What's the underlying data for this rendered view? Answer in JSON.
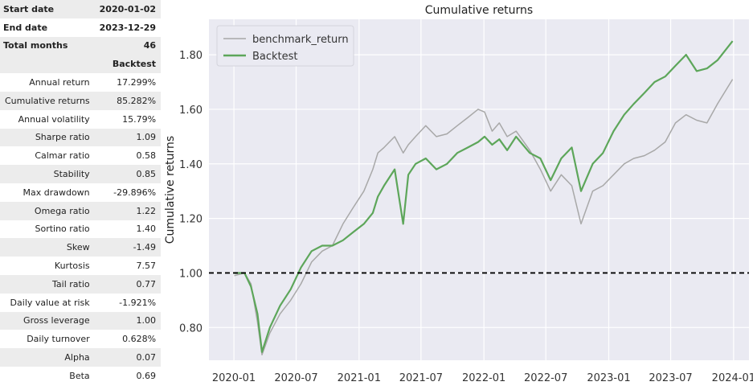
{
  "summary": [
    {
      "label": "Start date",
      "value": "2020-01-02"
    },
    {
      "label": "End date",
      "value": "2023-12-29"
    },
    {
      "label": "Total months",
      "value": "46"
    }
  ],
  "column_header": "Backtest",
  "metrics": [
    {
      "label": "Annual return",
      "value": "17.299%"
    },
    {
      "label": "Cumulative returns",
      "value": "85.282%"
    },
    {
      "label": "Annual volatility",
      "value": "15.79%"
    },
    {
      "label": "Sharpe ratio",
      "value": "1.09"
    },
    {
      "label": "Calmar ratio",
      "value": "0.58"
    },
    {
      "label": "Stability",
      "value": "0.85"
    },
    {
      "label": "Max drawdown",
      "value": "-29.896%"
    },
    {
      "label": "Omega ratio",
      "value": "1.22"
    },
    {
      "label": "Sortino ratio",
      "value": "1.40"
    },
    {
      "label": "Skew",
      "value": "-1.49"
    },
    {
      "label": "Kurtosis",
      "value": "7.57"
    },
    {
      "label": "Tail ratio",
      "value": "0.77"
    },
    {
      "label": "Daily value at risk",
      "value": "-1.921%"
    },
    {
      "label": "Gross leverage",
      "value": "1.00"
    },
    {
      "label": "Daily turnover",
      "value": "0.628%"
    },
    {
      "label": "Alpha",
      "value": "0.07"
    },
    {
      "label": "Beta",
      "value": "0.69"
    }
  ],
  "chart_data": {
    "type": "line",
    "title": "Cumulative returns",
    "xlabel": "",
    "ylabel": "Cumulative returns",
    "xlim": [
      "2019-10-20",
      "2024-02-15"
    ],
    "ylim": [
      0.68,
      1.93
    ],
    "x_ticks": [
      "2020-01-01",
      "2020-07-01",
      "2021-01-01",
      "2021-07-01",
      "2022-01-01",
      "2022-07-01",
      "2023-01-01",
      "2023-07-01",
      "2024-01-01"
    ],
    "x_tick_labels": [
      "2020-01",
      "2020-07",
      "2021-01",
      "2021-07",
      "2022-01",
      "2022-07",
      "2023-01",
      "2023-07",
      "2024-01"
    ],
    "y_ticks": [
      0.8,
      1.0,
      1.2,
      1.4,
      1.6,
      1.8
    ],
    "y_tick_labels": [
      "0.80",
      "1.00",
      "1.20",
      "1.40",
      "1.60",
      "1.80"
    ],
    "reference_line": {
      "y": 1.0,
      "style": "dashed",
      "color": "#000000"
    },
    "grid": true,
    "background": "#eaeaf2",
    "legend_position": "top-left",
    "series": [
      {
        "name": "benchmark_return",
        "color": "#a8a8a8",
        "x": [
          "2020-01-02",
          "2020-02-01",
          "2020-02-20",
          "2020-03-10",
          "2020-03-23",
          "2020-04-15",
          "2020-05-15",
          "2020-06-15",
          "2020-07-15",
          "2020-08-15",
          "2020-09-15",
          "2020-10-15",
          "2020-11-15",
          "2020-12-15",
          "2021-01-15",
          "2021-02-10",
          "2021-02-25",
          "2021-03-15",
          "2021-04-15",
          "2021-05-10",
          "2021-05-25",
          "2021-06-15",
          "2021-07-15",
          "2021-08-15",
          "2021-09-15",
          "2021-10-15",
          "2021-11-15",
          "2021-12-15",
          "2022-01-03",
          "2022-01-25",
          "2022-02-15",
          "2022-03-10",
          "2022-04-05",
          "2022-05-15",
          "2022-06-15",
          "2022-07-15",
          "2022-08-15",
          "2022-09-15",
          "2022-10-12",
          "2022-11-15",
          "2022-12-15",
          "2023-01-15",
          "2023-02-15",
          "2023-03-15",
          "2023-04-15",
          "2023-05-15",
          "2023-06-15",
          "2023-07-15",
          "2023-08-15",
          "2023-09-15",
          "2023-10-15",
          "2023-11-15",
          "2023-12-29"
        ],
        "y": [
          0.99,
          1.0,
          0.96,
          0.82,
          0.7,
          0.78,
          0.85,
          0.9,
          0.96,
          1.04,
          1.08,
          1.1,
          1.18,
          1.24,
          1.3,
          1.38,
          1.44,
          1.46,
          1.5,
          1.44,
          1.47,
          1.5,
          1.54,
          1.5,
          1.51,
          1.54,
          1.57,
          1.6,
          1.59,
          1.52,
          1.55,
          1.5,
          1.52,
          1.45,
          1.38,
          1.3,
          1.36,
          1.32,
          1.18,
          1.3,
          1.32,
          1.36,
          1.4,
          1.42,
          1.43,
          1.45,
          1.48,
          1.55,
          1.58,
          1.56,
          1.55,
          1.62,
          1.71
        ]
      },
      {
        "name": "Backtest",
        "color": "#5da65a",
        "x": [
          "2020-01-02",
          "2020-02-01",
          "2020-02-20",
          "2020-03-10",
          "2020-03-23",
          "2020-04-15",
          "2020-05-15",
          "2020-06-15",
          "2020-07-15",
          "2020-08-15",
          "2020-09-15",
          "2020-10-15",
          "2020-11-15",
          "2020-12-15",
          "2021-01-15",
          "2021-02-10",
          "2021-02-25",
          "2021-03-15",
          "2021-04-15",
          "2021-05-10",
          "2021-05-25",
          "2021-06-15",
          "2021-07-15",
          "2021-08-15",
          "2021-09-15",
          "2021-10-15",
          "2021-11-15",
          "2021-12-15",
          "2022-01-03",
          "2022-01-25",
          "2022-02-15",
          "2022-03-10",
          "2022-04-05",
          "2022-05-15",
          "2022-06-15",
          "2022-07-15",
          "2022-08-15",
          "2022-09-15",
          "2022-10-12",
          "2022-11-15",
          "2022-12-15",
          "2023-01-15",
          "2023-02-15",
          "2023-03-15",
          "2023-04-15",
          "2023-05-15",
          "2023-06-15",
          "2023-07-15",
          "2023-08-15",
          "2023-09-15",
          "2023-10-15",
          "2023-11-15",
          "2023-12-29"
        ],
        "y": [
          1.0,
          1.0,
          0.95,
          0.85,
          0.71,
          0.8,
          0.88,
          0.94,
          1.02,
          1.08,
          1.1,
          1.1,
          1.12,
          1.15,
          1.18,
          1.22,
          1.28,
          1.32,
          1.38,
          1.18,
          1.36,
          1.4,
          1.42,
          1.38,
          1.4,
          1.44,
          1.46,
          1.48,
          1.5,
          1.47,
          1.49,
          1.45,
          1.5,
          1.44,
          1.42,
          1.34,
          1.42,
          1.46,
          1.3,
          1.4,
          1.44,
          1.52,
          1.58,
          1.62,
          1.66,
          1.7,
          1.72,
          1.76,
          1.8,
          1.74,
          1.75,
          1.78,
          1.85
        ]
      }
    ]
  }
}
